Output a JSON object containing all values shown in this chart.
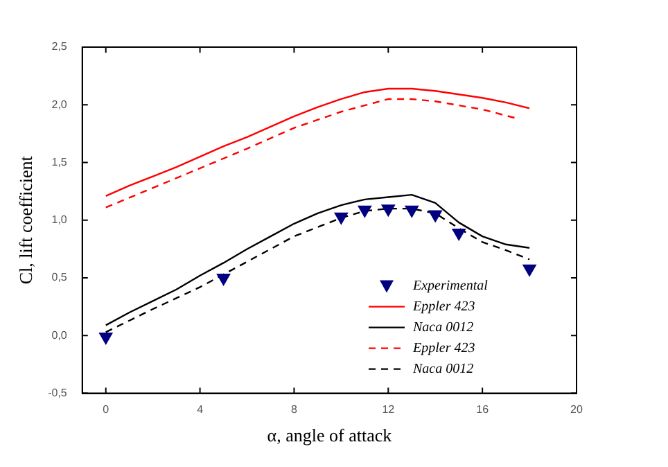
{
  "chart_data": {
    "type": "line",
    "xlabel": "α, angle of attack",
    "ylabel": "Cl, lift coefficient",
    "xlim": [
      -1,
      20
    ],
    "xticks": [
      0,
      4,
      8,
      12,
      16,
      20
    ],
    "ylim": [
      -0.5,
      2.5
    ],
    "yticks": [
      {
        "value": -0.5,
        "label": "-0,5"
      },
      {
        "value": 0,
        "label": "0,0"
      },
      {
        "value": 0.5,
        "label": "0,5"
      },
      {
        "value": 1,
        "label": "1,0"
      },
      {
        "value": 1.5,
        "label": "1,5"
      },
      {
        "value": 2,
        "label": "2,0"
      },
      {
        "value": 2.5,
        "label": "2,5"
      }
    ],
    "grid": false,
    "legend": "bottom right",
    "series": [
      {
        "name": "Experimental",
        "type": "scatter",
        "marker": "triangle",
        "color": "#000080",
        "x": [
          0,
          5,
          10,
          11,
          12,
          13,
          14,
          15,
          18
        ],
        "values": [
          -0.01,
          0.5,
          1.03,
          1.09,
          1.1,
          1.09,
          1.05,
          0.89,
          0.58
        ]
      },
      {
        "name": "Eppler 423",
        "marker": "none",
        "line_style": "solid",
        "color": "#ff0000",
        "x": [
          0,
          1,
          2,
          3,
          4,
          5,
          6,
          7,
          8,
          9,
          10,
          11,
          12,
          13,
          14,
          15,
          16,
          17,
          18
        ],
        "values": [
          1.21,
          1.3,
          1.38,
          1.46,
          1.55,
          1.64,
          1.72,
          1.81,
          1.9,
          1.98,
          2.05,
          2.11,
          2.14,
          2.14,
          2.12,
          2.09,
          2.06,
          2.02,
          1.97
        ]
      },
      {
        "name": "Naca 0012",
        "marker": "none",
        "line_style": "solid",
        "color": "#000000",
        "x": [
          0,
          1,
          2,
          3,
          4,
          5,
          6,
          7,
          8,
          9,
          10,
          11,
          12,
          13,
          14,
          15,
          16,
          17,
          18
        ],
        "values": [
          0.09,
          0.2,
          0.3,
          0.4,
          0.52,
          0.63,
          0.75,
          0.86,
          0.97,
          1.06,
          1.13,
          1.18,
          1.2,
          1.22,
          1.15,
          0.98,
          0.86,
          0.79,
          0.76
        ]
      },
      {
        "name": "Eppler 423",
        "marker": "none",
        "line_style": "dashed",
        "color": "#ff0000",
        "x": [
          0,
          2,
          4,
          6,
          8,
          10,
          12,
          13,
          14,
          16,
          17.5
        ],
        "values": [
          1.11,
          1.28,
          1.45,
          1.62,
          1.8,
          1.94,
          2.05,
          2.05,
          2.03,
          1.96,
          1.88
        ]
      },
      {
        "name": "Naca 0012",
        "marker": "none",
        "line_style": "dashed",
        "color": "#000000",
        "x": [
          0,
          2,
          4,
          6,
          8,
          10,
          11,
          12,
          13,
          14,
          15,
          16,
          17,
          18
        ],
        "values": [
          0.03,
          0.23,
          0.42,
          0.64,
          0.86,
          1.02,
          1.08,
          1.1,
          1.1,
          1.06,
          0.93,
          0.81,
          0.74,
          0.66
        ]
      }
    ]
  }
}
